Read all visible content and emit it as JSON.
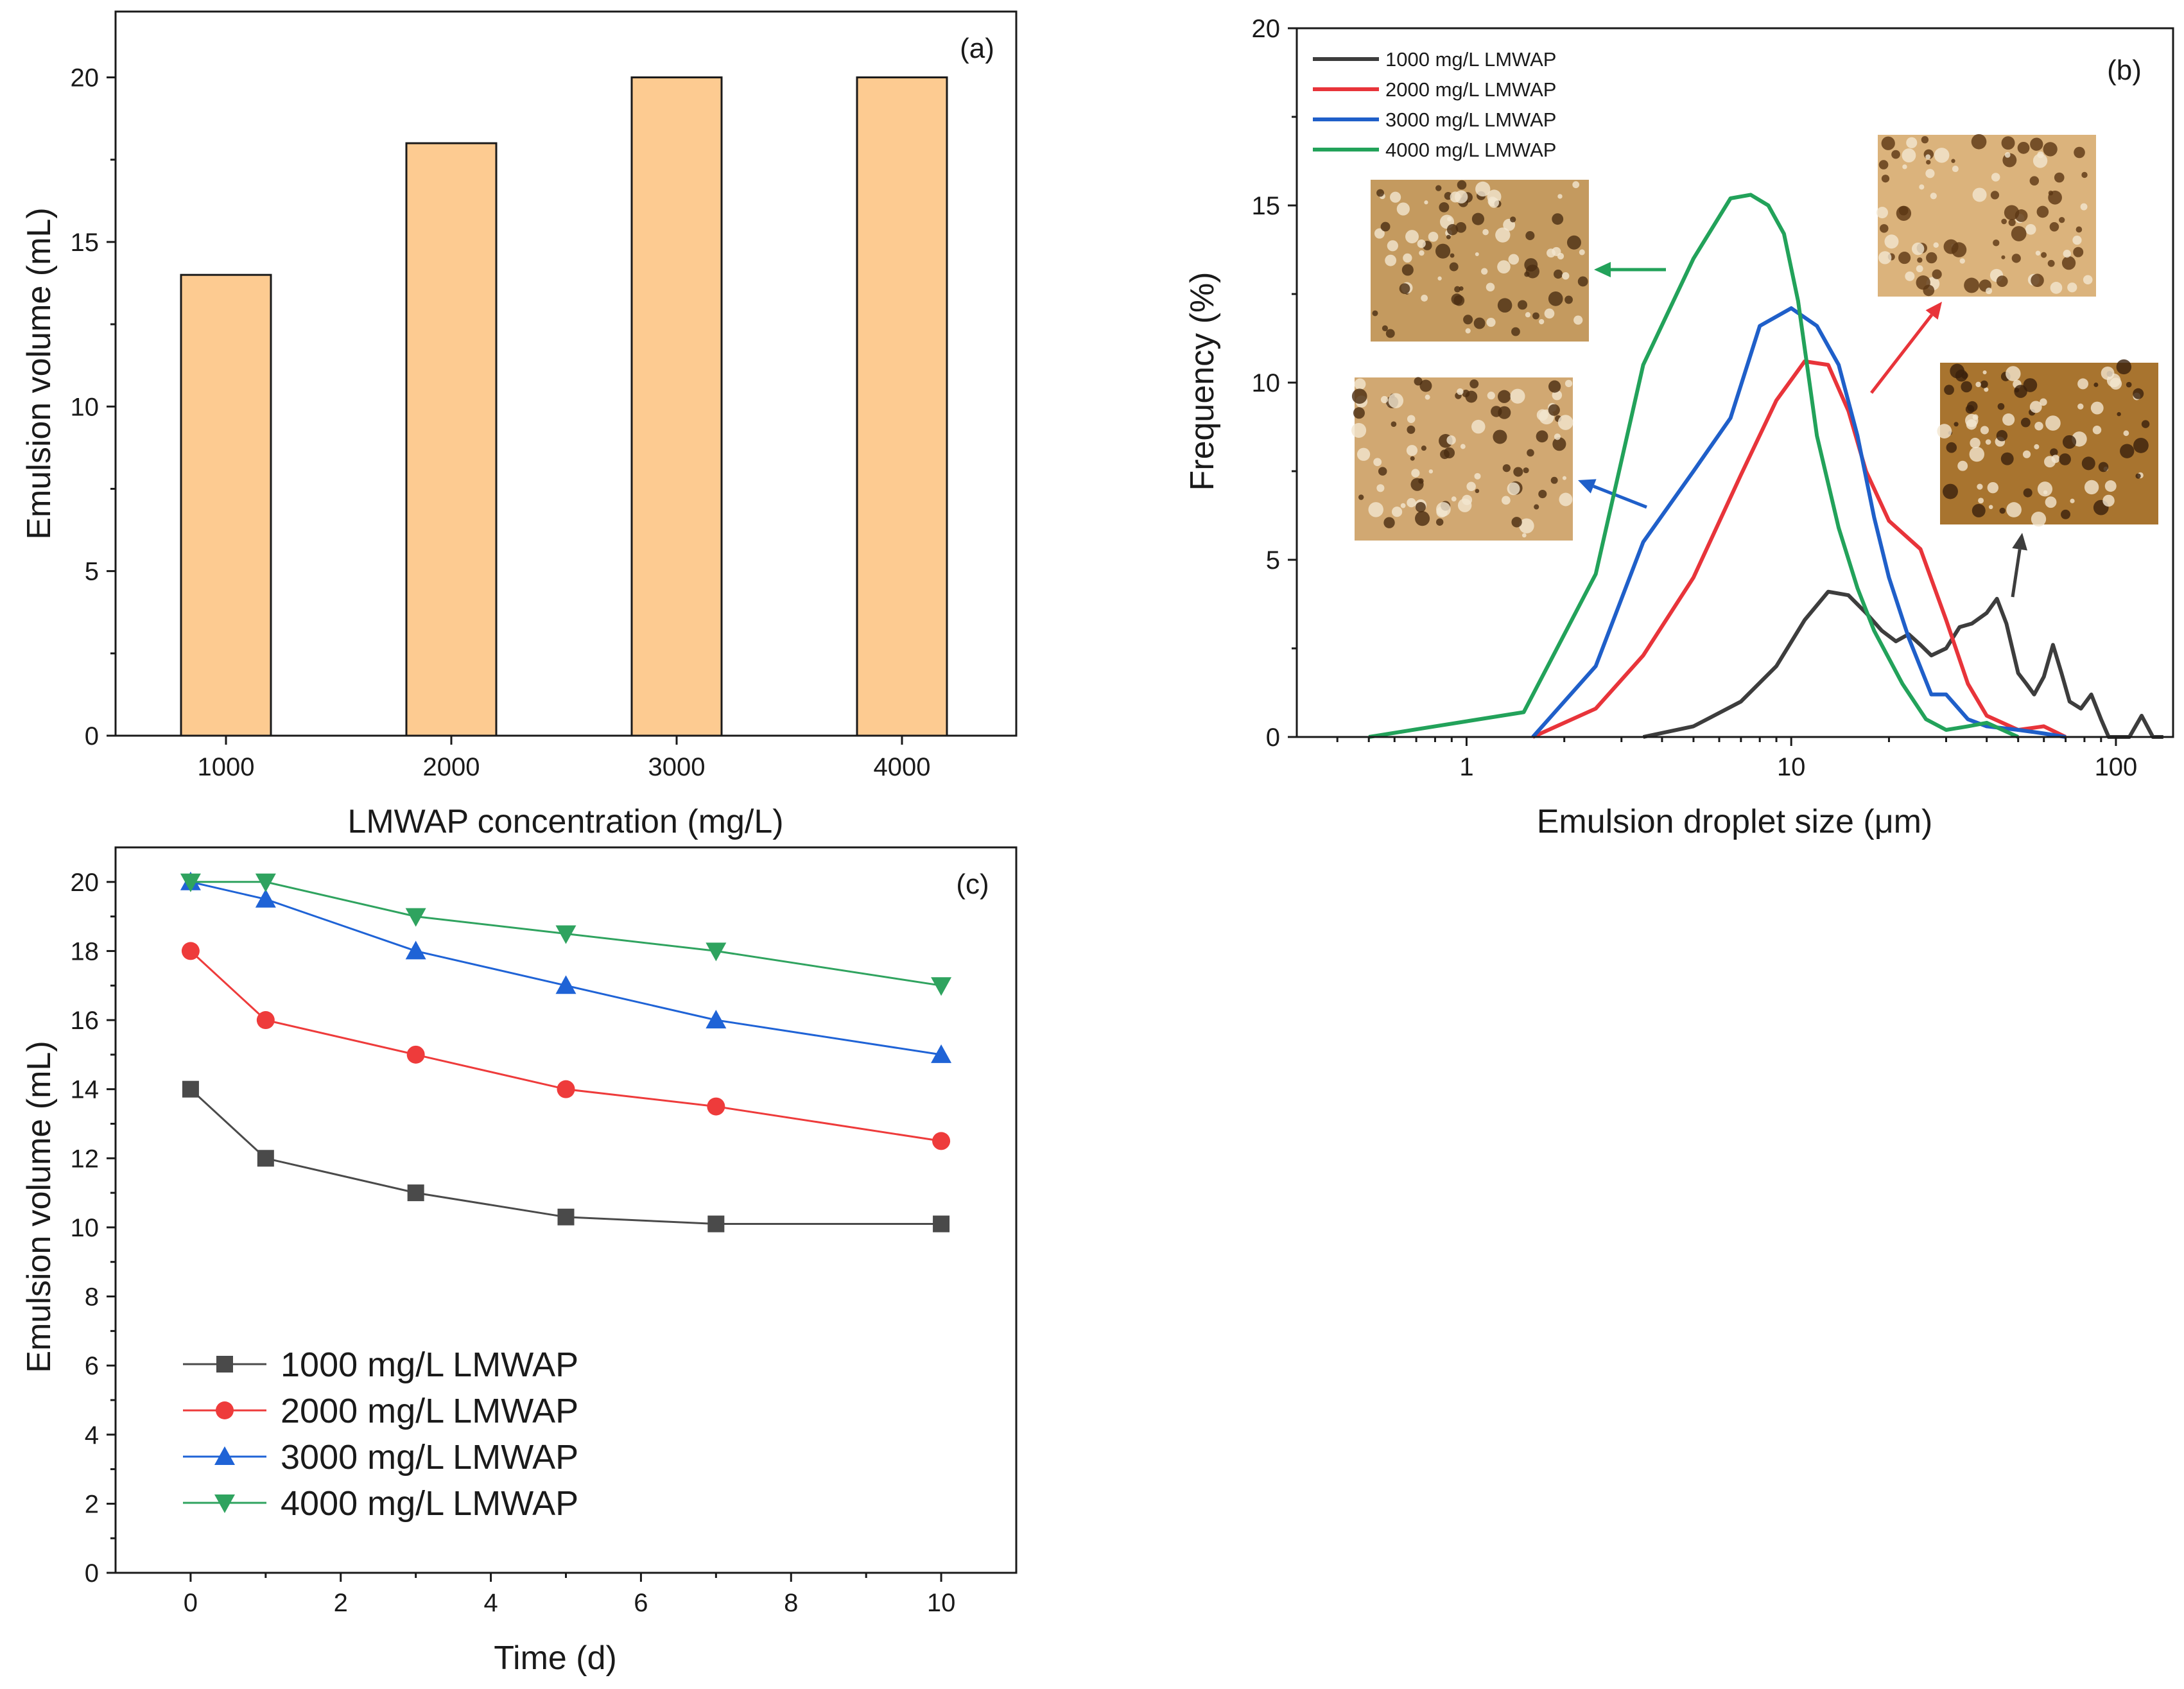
{
  "chart_data": [
    {
      "panel": "(a)",
      "type": "bar",
      "xlabel": "LMWAP concentration (mg/L)",
      "ylabel": "Emulsion volume (mL)",
      "categories": [
        "1000",
        "2000",
        "3000",
        "4000"
      ],
      "values": [
        14,
        18,
        20,
        20
      ],
      "ylim": [
        0,
        22
      ],
      "yticks": [
        "0",
        "5",
        "10",
        "15",
        "20"
      ],
      "bar_color": "#fdcb91"
    },
    {
      "panel": "(b)",
      "type": "line",
      "xscale": "log",
      "xlabel": "Emulsion droplet size (μm)",
      "ylabel": "Frequency (%)",
      "xlim": [
        0.3,
        150
      ],
      "ylim": [
        0,
        20
      ],
      "xticks": [
        "1",
        "10",
        "100"
      ],
      "yticks": [
        "0",
        "5",
        "10",
        "15",
        "20"
      ],
      "legend_position": "top-left",
      "inset_note": "four optical micrographs of emulsion droplets with arrows pointing to the curves",
      "series": [
        {
          "name": "1000 mg/L LMWAP",
          "color": "#3d3d3d",
          "x": [
            3.5,
            5,
            7,
            9,
            11,
            13,
            15,
            17,
            19,
            21,
            23,
            25,
            27,
            30,
            33,
            36,
            40,
            43,
            46,
            50,
            53,
            56,
            60,
            64,
            68,
            72,
            78,
            84,
            90,
            95,
            100,
            110,
            120,
            130,
            140
          ],
          "y": [
            0,
            0.3,
            1,
            2,
            3.3,
            4.1,
            4,
            3.5,
            3,
            2.7,
            2.9,
            2.6,
            2.3,
            2.5,
            3.1,
            3.2,
            3.5,
            3.9,
            3.2,
            1.8,
            1.5,
            1.2,
            1.7,
            2.6,
            1.8,
            1,
            0.8,
            1.2,
            0.5,
            0,
            0,
            0,
            0.6,
            0,
            0
          ]
        },
        {
          "name": "2000 mg/L LMWAP",
          "color": "#e8343a",
          "x": [
            1.6,
            2.5,
            3.5,
            5,
            7,
            9,
            11,
            13,
            15,
            17,
            20,
            25,
            30,
            35,
            40,
            50,
            60,
            70
          ],
          "y": [
            0,
            0.8,
            2.3,
            4.5,
            7.4,
            9.5,
            10.6,
            10.5,
            9.2,
            7.5,
            6.1,
            5.3,
            3.3,
            1.5,
            0.6,
            0.2,
            0.3,
            0
          ]
        },
        {
          "name": "3000 mg/L LMWAP",
          "color": "#1f5fc9",
          "x": [
            1.6,
            2.5,
            3.5,
            5,
            6.5,
            8,
            10,
            12,
            14,
            16,
            18,
            20,
            23,
            27,
            30,
            35,
            40,
            50,
            60,
            70
          ],
          "y": [
            0,
            2,
            5.5,
            7.5,
            9,
            11.6,
            12.1,
            11.6,
            10.5,
            8.5,
            6.2,
            4.5,
            2.8,
            1.2,
            1.2,
            0.5,
            0.3,
            0.2,
            0.1,
            0
          ]
        },
        {
          "name": "4000 mg/L LMWAP",
          "color": "#22a25a",
          "x": [
            0.5,
            0.8,
            1.5,
            2.5,
            3.5,
            5,
            6.5,
            7.5,
            8.5,
            9.5,
            10.5,
            12,
            14,
            16,
            18,
            22,
            26,
            30,
            35,
            40,
            50
          ],
          "y": [
            0,
            0.3,
            0.7,
            4.6,
            10.5,
            13.5,
            15.2,
            15.3,
            15,
            14.2,
            12.3,
            8.5,
            5.9,
            4.2,
            3,
            1.5,
            0.5,
            0.2,
            0.3,
            0.4,
            0
          ]
        }
      ]
    },
    {
      "panel": "(c)",
      "type": "line",
      "xlabel": "Time (d)",
      "ylabel": "Emulsion volume (mL)",
      "xlim": [
        -1,
        11
      ],
      "ylim": [
        0,
        21
      ],
      "xticks": [
        "0",
        "2",
        "4",
        "6",
        "8",
        "10"
      ],
      "yticks": [
        "0",
        "2",
        "4",
        "6",
        "8",
        "10",
        "12",
        "14",
        "16",
        "18",
        "20"
      ],
      "legend_position": "bottom-left",
      "x": [
        0,
        1,
        3,
        5,
        7,
        10
      ],
      "series": [
        {
          "name": "1000 mg/L LMWAP",
          "color": "#4a4a4a",
          "marker": "square",
          "values": [
            14,
            12,
            11,
            10.3,
            10.1,
            10.1
          ]
        },
        {
          "name": "2000 mg/L LMWAP",
          "color": "#ee3b3b",
          "marker": "circle",
          "values": [
            18,
            16,
            15,
            14,
            13.5,
            12.5
          ]
        },
        {
          "name": "3000 mg/L LMWAP",
          "color": "#1f63d6",
          "marker": "triangle-up",
          "values": [
            20,
            19.5,
            18,
            17,
            16,
            15
          ]
        },
        {
          "name": "4000 mg/L LMWAP",
          "color": "#2fa35f",
          "marker": "triangle-down",
          "values": [
            20,
            20,
            19,
            18.5,
            18,
            17
          ]
        }
      ]
    }
  ]
}
